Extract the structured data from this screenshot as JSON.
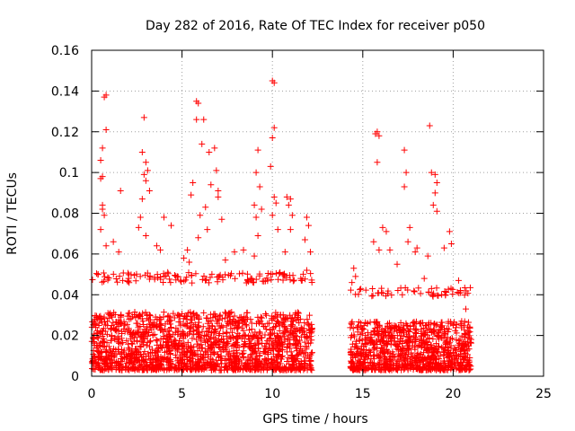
{
  "chart_data": {
    "type": "scatter",
    "title": "Day 282 of 2016, Rate Of TEC Index for receiver p050",
    "xlabel": "GPS time / hours",
    "ylabel": "ROTI / TECUs",
    "xlim": [
      0,
      25
    ],
    "ylim": [
      0,
      0.16
    ],
    "xticks": [
      0,
      5,
      10,
      15,
      20,
      25
    ],
    "xtick_labels": [
      "0",
      "5",
      "10",
      "15",
      "20",
      "25"
    ],
    "yticks": [
      0,
      0.02,
      0.04,
      0.06,
      0.08,
      0.1,
      0.12,
      0.14,
      0.16
    ],
    "ytick_labels": [
      "0",
      "0.02",
      "0.04",
      "0.06",
      "0.08",
      "0.1",
      "0.12",
      "0.14",
      "0.16"
    ],
    "grid": true,
    "marker": "+",
    "marker_color": "#ff0000",
    "series": [
      {
        "name": "ROTI",
        "segments": [
          {
            "x_start": 0.0,
            "x_end": 12.2,
            "typical_min": 0.003,
            "typical_max": 0.035
          },
          {
            "x_start": 14.3,
            "x_end": 21.0,
            "typical_min": 0.003,
            "typical_max": 0.03
          }
        ],
        "points": [
          {
            "x": 0.7,
            "y": 0.137
          },
          {
            "x": 0.8,
            "y": 0.138
          },
          {
            "x": 0.8,
            "y": 0.121
          },
          {
            "x": 0.6,
            "y": 0.112
          },
          {
            "x": 0.5,
            "y": 0.106
          },
          {
            "x": 0.6,
            "y": 0.098
          },
          {
            "x": 0.5,
            "y": 0.097
          },
          {
            "x": 0.6,
            "y": 0.084
          },
          {
            "x": 0.6,
            "y": 0.082
          },
          {
            "x": 0.7,
            "y": 0.079
          },
          {
            "x": 0.5,
            "y": 0.072
          },
          {
            "x": 0.8,
            "y": 0.064
          },
          {
            "x": 1.2,
            "y": 0.066
          },
          {
            "x": 1.6,
            "y": 0.091
          },
          {
            "x": 1.5,
            "y": 0.061
          },
          {
            "x": 2.9,
            "y": 0.127
          },
          {
            "x": 2.8,
            "y": 0.11
          },
          {
            "x": 3.0,
            "y": 0.105
          },
          {
            "x": 3.1,
            "y": 0.101
          },
          {
            "x": 2.9,
            "y": 0.099
          },
          {
            "x": 3.0,
            "y": 0.096
          },
          {
            "x": 3.2,
            "y": 0.091
          },
          {
            "x": 2.8,
            "y": 0.087
          },
          {
            "x": 2.7,
            "y": 0.078
          },
          {
            "x": 2.6,
            "y": 0.073
          },
          {
            "x": 3.0,
            "y": 0.069
          },
          {
            "x": 3.6,
            "y": 0.064
          },
          {
            "x": 3.8,
            "y": 0.062
          },
          {
            "x": 4.0,
            "y": 0.078
          },
          {
            "x": 4.4,
            "y": 0.074
          },
          {
            "x": 5.8,
            "y": 0.135
          },
          {
            "x": 5.9,
            "y": 0.134
          },
          {
            "x": 5.8,
            "y": 0.126
          },
          {
            "x": 6.2,
            "y": 0.126
          },
          {
            "x": 6.1,
            "y": 0.114
          },
          {
            "x": 6.5,
            "y": 0.11
          },
          {
            "x": 6.8,
            "y": 0.112
          },
          {
            "x": 6.9,
            "y": 0.101
          },
          {
            "x": 6.6,
            "y": 0.094
          },
          {
            "x": 5.6,
            "y": 0.095
          },
          {
            "x": 5.5,
            "y": 0.089
          },
          {
            "x": 7.0,
            "y": 0.091
          },
          {
            "x": 7.0,
            "y": 0.088
          },
          {
            "x": 6.3,
            "y": 0.083
          },
          {
            "x": 6.0,
            "y": 0.079
          },
          {
            "x": 7.2,
            "y": 0.077
          },
          {
            "x": 6.4,
            "y": 0.072
          },
          {
            "x": 5.9,
            "y": 0.068
          },
          {
            "x": 5.3,
            "y": 0.062
          },
          {
            "x": 5.1,
            "y": 0.058
          },
          {
            "x": 5.4,
            "y": 0.056
          },
          {
            "x": 7.4,
            "y": 0.057
          },
          {
            "x": 7.9,
            "y": 0.061
          },
          {
            "x": 8.4,
            "y": 0.062
          },
          {
            "x": 9.0,
            "y": 0.059
          },
          {
            "x": 9.2,
            "y": 0.111
          },
          {
            "x": 9.1,
            "y": 0.1
          },
          {
            "x": 9.3,
            "y": 0.093
          },
          {
            "x": 9.0,
            "y": 0.084
          },
          {
            "x": 9.4,
            "y": 0.082
          },
          {
            "x": 9.1,
            "y": 0.078
          },
          {
            "x": 9.2,
            "y": 0.069
          },
          {
            "x": 10.0,
            "y": 0.145
          },
          {
            "x": 10.1,
            "y": 0.144
          },
          {
            "x": 10.1,
            "y": 0.122
          },
          {
            "x": 10.0,
            "y": 0.117
          },
          {
            "x": 9.9,
            "y": 0.103
          },
          {
            "x": 10.1,
            "y": 0.088
          },
          {
            "x": 10.2,
            "y": 0.085
          },
          {
            "x": 10.0,
            "y": 0.079
          },
          {
            "x": 10.3,
            "y": 0.072
          },
          {
            "x": 10.8,
            "y": 0.088
          },
          {
            "x": 11.0,
            "y": 0.087
          },
          {
            "x": 10.9,
            "y": 0.084
          },
          {
            "x": 11.1,
            "y": 0.079
          },
          {
            "x": 11.0,
            "y": 0.072
          },
          {
            "x": 10.7,
            "y": 0.061
          },
          {
            "x": 11.9,
            "y": 0.078
          },
          {
            "x": 12.0,
            "y": 0.074
          },
          {
            "x": 11.8,
            "y": 0.067
          },
          {
            "x": 12.1,
            "y": 0.061
          },
          {
            "x": 11.9,
            "y": 0.052
          },
          {
            "x": 11.6,
            "y": 0.047
          },
          {
            "x": 14.5,
            "y": 0.053
          },
          {
            "x": 14.6,
            "y": 0.049
          },
          {
            "x": 14.4,
            "y": 0.046
          },
          {
            "x": 15.7,
            "y": 0.119
          },
          {
            "x": 15.8,
            "y": 0.12
          },
          {
            "x": 15.9,
            "y": 0.118
          },
          {
            "x": 15.8,
            "y": 0.105
          },
          {
            "x": 16.1,
            "y": 0.073
          },
          {
            "x": 16.3,
            "y": 0.071
          },
          {
            "x": 16.5,
            "y": 0.062
          },
          {
            "x": 15.6,
            "y": 0.066
          },
          {
            "x": 15.9,
            "y": 0.062
          },
          {
            "x": 16.9,
            "y": 0.055
          },
          {
            "x": 17.3,
            "y": 0.111
          },
          {
            "x": 17.4,
            "y": 0.1
          },
          {
            "x": 17.3,
            "y": 0.093
          },
          {
            "x": 17.6,
            "y": 0.073
          },
          {
            "x": 17.5,
            "y": 0.066
          },
          {
            "x": 18.0,
            "y": 0.063
          },
          {
            "x": 17.9,
            "y": 0.061
          },
          {
            "x": 18.7,
            "y": 0.123
          },
          {
            "x": 18.8,
            "y": 0.1
          },
          {
            "x": 19.0,
            "y": 0.099
          },
          {
            "x": 19.1,
            "y": 0.095
          },
          {
            "x": 19.0,
            "y": 0.09
          },
          {
            "x": 18.9,
            "y": 0.084
          },
          {
            "x": 19.1,
            "y": 0.081
          },
          {
            "x": 19.5,
            "y": 0.063
          },
          {
            "x": 19.8,
            "y": 0.071
          },
          {
            "x": 19.9,
            "y": 0.065
          },
          {
            "x": 18.6,
            "y": 0.059
          },
          {
            "x": 18.4,
            "y": 0.048
          },
          {
            "x": 20.3,
            "y": 0.047
          },
          {
            "x": 20.4,
            "y": 0.042
          },
          {
            "x": 20.7,
            "y": 0.033
          }
        ]
      }
    ]
  }
}
